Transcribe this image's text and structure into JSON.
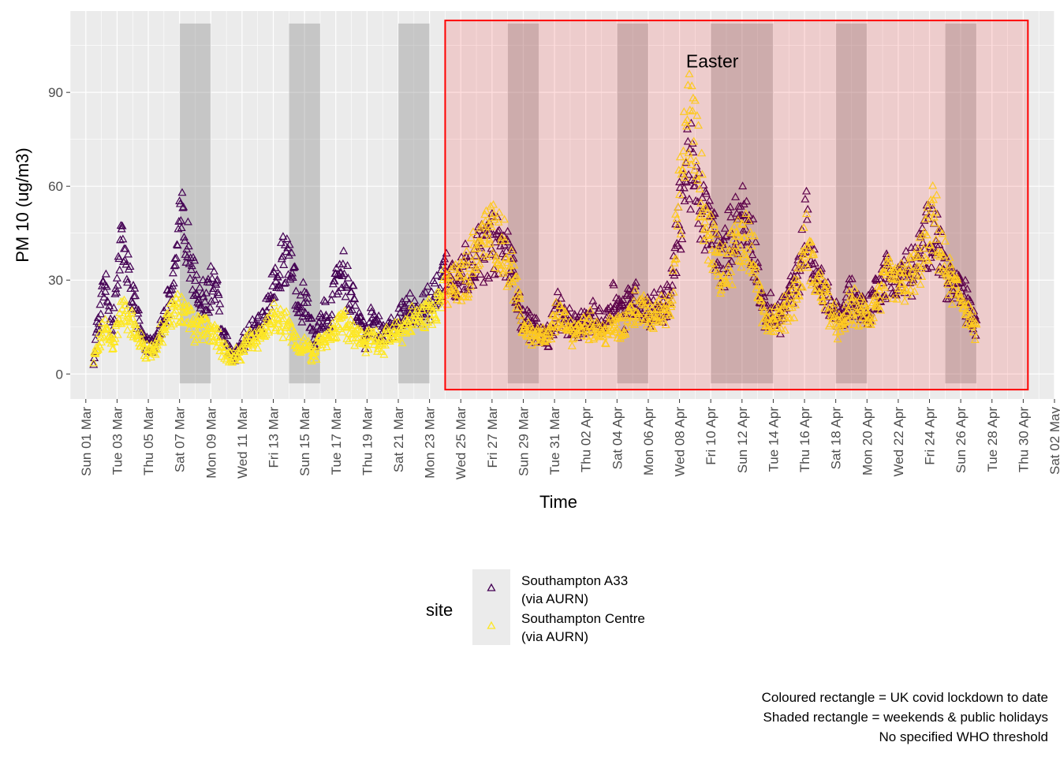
{
  "chart_data": {
    "type": "scatter",
    "xlabel": "Time",
    "ylabel": "PM 10 (ug/m3)",
    "ylim": [
      -8,
      116
    ],
    "xlim_days": [
      -1,
      62
    ],
    "y_ticks": [
      0,
      30,
      60,
      90
    ],
    "grid": true,
    "legend_placement": "bottom",
    "legend_title": "site",
    "x_ticks": [
      {
        "day": 0,
        "label": "Sun 01 Mar"
      },
      {
        "day": 2,
        "label": "Tue 03 Mar"
      },
      {
        "day": 4,
        "label": "Thu 05 Mar"
      },
      {
        "day": 6,
        "label": "Sat 07 Mar"
      },
      {
        "day": 8,
        "label": "Mon 09 Mar"
      },
      {
        "day": 10,
        "label": "Wed 11 Mar"
      },
      {
        "day": 12,
        "label": "Fri 13 Mar"
      },
      {
        "day": 14,
        "label": "Sun 15 Mar"
      },
      {
        "day": 16,
        "label": "Tue 17 Mar"
      },
      {
        "day": 18,
        "label": "Thu 19 Mar"
      },
      {
        "day": 20,
        "label": "Sat 21 Mar"
      },
      {
        "day": 22,
        "label": "Mon 23 Mar"
      },
      {
        "day": 24,
        "label": "Wed 25 Mar"
      },
      {
        "day": 26,
        "label": "Fri 27 Mar"
      },
      {
        "day": 28,
        "label": "Sun 29 Mar"
      },
      {
        "day": 30,
        "label": "Tue 31 Mar"
      },
      {
        "day": 32,
        "label": "Thu 02 Apr"
      },
      {
        "day": 34,
        "label": "Sat 04 Apr"
      },
      {
        "day": 36,
        "label": "Mon 06 Apr"
      },
      {
        "day": 38,
        "label": "Wed 08 Apr"
      },
      {
        "day": 40,
        "label": "Fri 10 Apr"
      },
      {
        "day": 42,
        "label": "Sun 12 Apr"
      },
      {
        "day": 44,
        "label": "Tue 14 Apr"
      },
      {
        "day": 46,
        "label": "Thu 16 Apr"
      },
      {
        "day": 48,
        "label": "Sat 18 Apr"
      },
      {
        "day": 50,
        "label": "Mon 20 Apr"
      },
      {
        "day": 52,
        "label": "Wed 22 Apr"
      },
      {
        "day": 54,
        "label": "Fri 24 Apr"
      },
      {
        "day": 56,
        "label": "Sun 26 Apr"
      },
      {
        "day": 58,
        "label": "Tue 28 Apr"
      },
      {
        "day": 60,
        "label": "Thu 30 Apr"
      },
      {
        "day": 62,
        "label": "Sat 02 May"
      }
    ],
    "shaded_periods": [
      {
        "start": 6,
        "end": 8,
        "y0": -3,
        "y1": 112
      },
      {
        "start": 13,
        "end": 15,
        "y0": -3,
        "y1": 112
      },
      {
        "start": 20,
        "end": 22,
        "y0": -3,
        "y1": 112
      },
      {
        "start": 27,
        "end": 29,
        "y0": -3,
        "y1": 112
      },
      {
        "start": 34,
        "end": 36,
        "y0": -3,
        "y1": 112
      },
      {
        "start": 40,
        "end": 44,
        "y0": -3,
        "y1": 112
      },
      {
        "start": 48,
        "end": 50,
        "y0": -3,
        "y1": 112
      },
      {
        "start": 55,
        "end": 57,
        "y0": -3,
        "y1": 112
      }
    ],
    "lockdown_period": {
      "start": 23,
      "end": 60.3,
      "y0": -5,
      "y1": 113
    },
    "annotations": [
      {
        "label": "Easter",
        "day": 40.1,
        "y": 100
      }
    ],
    "series": [
      {
        "name": "Southampton A33\n(via AURN)",
        "color": "#440154",
        "daily_profile": [
          [
            0.5,
            5
          ],
          [
            1.2,
            30
          ],
          [
            1.7,
            12
          ],
          [
            2.3,
            45
          ],
          [
            2.8,
            30
          ],
          [
            3.3,
            20
          ],
          [
            3.8,
            10
          ],
          [
            4.3,
            8
          ],
          [
            5.0,
            18
          ],
          [
            5.6,
            30
          ],
          [
            6.1,
            50
          ],
          [
            6.6,
            38
          ],
          [
            7.0,
            28
          ],
          [
            7.6,
            25
          ],
          [
            8.3,
            30
          ],
          [
            8.8,
            12
          ],
          [
            9.4,
            5
          ],
          [
            10.0,
            10
          ],
          [
            10.5,
            14
          ],
          [
            11.0,
            15
          ],
          [
            11.5,
            18
          ],
          [
            12.1,
            30
          ],
          [
            12.6,
            35
          ],
          [
            13.0,
            40
          ],
          [
            13.6,
            20
          ],
          [
            14.1,
            25
          ],
          [
            14.6,
            10
          ],
          [
            15.2,
            18
          ],
          [
            15.7,
            20
          ],
          [
            16.3,
            35
          ],
          [
            16.8,
            28
          ],
          [
            17.3,
            20
          ],
          [
            17.9,
            12
          ],
          [
            18.4,
            18
          ],
          [
            19.0,
            12
          ],
          [
            19.6,
            15
          ],
          [
            20.2,
            18
          ],
          [
            20.8,
            22
          ],
          [
            21.4,
            20
          ],
          [
            22.0,
            22
          ],
          [
            22.6,
            28
          ],
          [
            23.2,
            35
          ],
          [
            23.8,
            30
          ],
          [
            24.4,
            35
          ],
          [
            25.0,
            38
          ],
          [
            25.6,
            40
          ],
          [
            26.2,
            42
          ],
          [
            26.8,
            40
          ],
          [
            27.4,
            32
          ],
          [
            27.9,
            18
          ],
          [
            28.5,
            15
          ],
          [
            29.0,
            14
          ],
          [
            29.6,
            12
          ],
          [
            30.2,
            22
          ],
          [
            30.8,
            16
          ],
          [
            31.4,
            15
          ],
          [
            32.0,
            17
          ],
          [
            32.6,
            18
          ],
          [
            33.2,
            16
          ],
          [
            33.8,
            25
          ],
          [
            34.4,
            20
          ],
          [
            35.0,
            25
          ],
          [
            35.6,
            22
          ],
          [
            36.2,
            20
          ],
          [
            36.8,
            22
          ],
          [
            37.4,
            24
          ],
          [
            38.0,
            50
          ],
          [
            38.6,
            70
          ],
          [
            39.1,
            55
          ],
          [
            39.6,
            50
          ],
          [
            40.2,
            45
          ],
          [
            40.7,
            35
          ],
          [
            41.3,
            45
          ],
          [
            41.8,
            50
          ],
          [
            42.3,
            50
          ],
          [
            42.8,
            40
          ],
          [
            43.3,
            20
          ],
          [
            43.8,
            20
          ],
          [
            44.4,
            18
          ],
          [
            45.0,
            25
          ],
          [
            45.6,
            30
          ],
          [
            46.1,
            48
          ],
          [
            46.7,
            30
          ],
          [
            47.3,
            28
          ],
          [
            47.8,
            20
          ],
          [
            48.4,
            18
          ],
          [
            48.9,
            26
          ],
          [
            49.5,
            22
          ],
          [
            50.1,
            20
          ],
          [
            50.7,
            28
          ],
          [
            51.3,
            32
          ],
          [
            51.9,
            30
          ],
          [
            52.5,
            32
          ],
          [
            53.1,
            34
          ],
          [
            53.7,
            42
          ],
          [
            54.3,
            48
          ],
          [
            54.9,
            35
          ],
          [
            55.5,
            28
          ],
          [
            56.1,
            26
          ],
          [
            56.6,
            20
          ],
          [
            57.0,
            15
          ]
        ]
      },
      {
        "name": "Southampton Centre\n(via AURN)",
        "color": "#FDE725",
        "daily_profile": [
          [
            0.5,
            4
          ],
          [
            1.2,
            15
          ],
          [
            1.7,
            10
          ],
          [
            2.3,
            20
          ],
          [
            2.8,
            18
          ],
          [
            3.3,
            12
          ],
          [
            3.8,
            8
          ],
          [
            4.3,
            7
          ],
          [
            5.0,
            14
          ],
          [
            5.6,
            20
          ],
          [
            6.1,
            22
          ],
          [
            6.6,
            18
          ],
          [
            7.0,
            14
          ],
          [
            7.6,
            15
          ],
          [
            8.3,
            14
          ],
          [
            8.8,
            8
          ],
          [
            9.4,
            4
          ],
          [
            10.0,
            8
          ],
          [
            10.5,
            11
          ],
          [
            11.0,
            12
          ],
          [
            11.5,
            14
          ],
          [
            12.1,
            18
          ],
          [
            12.6,
            16
          ],
          [
            13.0,
            14
          ],
          [
            13.6,
            8
          ],
          [
            14.1,
            9
          ],
          [
            14.6,
            6
          ],
          [
            15.2,
            12
          ],
          [
            15.7,
            13
          ],
          [
            16.3,
            18
          ],
          [
            16.8,
            16
          ],
          [
            17.3,
            13
          ],
          [
            17.9,
            10
          ],
          [
            18.4,
            12
          ],
          [
            19.0,
            10
          ],
          [
            19.6,
            12
          ],
          [
            20.2,
            14
          ],
          [
            20.8,
            17
          ],
          [
            21.4,
            18
          ],
          [
            22.0,
            20
          ],
          [
            22.6,
            24
          ],
          [
            23.2,
            28
          ],
          [
            23.8,
            28
          ],
          [
            24.4,
            32
          ],
          [
            25.0,
            40
          ],
          [
            25.6,
            44
          ],
          [
            26.2,
            45
          ],
          [
            26.8,
            40
          ],
          [
            27.4,
            30
          ],
          [
            27.9,
            16
          ],
          [
            28.5,
            13
          ],
          [
            29.0,
            12
          ],
          [
            29.6,
            11
          ],
          [
            30.2,
            20
          ],
          [
            30.8,
            14
          ],
          [
            31.4,
            14
          ],
          [
            32.0,
            16
          ],
          [
            32.6,
            15
          ],
          [
            33.2,
            13
          ],
          [
            33.8,
            15
          ],
          [
            34.4,
            14
          ],
          [
            35.0,
            22
          ],
          [
            35.6,
            20
          ],
          [
            36.2,
            18
          ],
          [
            36.8,
            20
          ],
          [
            37.4,
            22
          ],
          [
            38.0,
            55
          ],
          [
            38.6,
            85
          ],
          [
            39.1,
            70
          ],
          [
            39.6,
            50
          ],
          [
            40.2,
            40
          ],
          [
            40.7,
            33
          ],
          [
            41.3,
            38
          ],
          [
            41.8,
            42
          ],
          [
            42.3,
            45
          ],
          [
            42.8,
            35
          ],
          [
            43.3,
            18
          ],
          [
            43.8,
            18
          ],
          [
            44.4,
            17
          ],
          [
            45.0,
            22
          ],
          [
            45.6,
            28
          ],
          [
            46.1,
            42
          ],
          [
            46.7,
            30
          ],
          [
            47.3,
            26
          ],
          [
            47.8,
            18
          ],
          [
            48.4,
            14
          ],
          [
            48.9,
            22
          ],
          [
            49.5,
            20
          ],
          [
            50.1,
            18
          ],
          [
            50.7,
            24
          ],
          [
            51.3,
            30
          ],
          [
            51.9,
            28
          ],
          [
            52.5,
            30
          ],
          [
            53.1,
            32
          ],
          [
            53.7,
            40
          ],
          [
            54.3,
            50
          ],
          [
            54.9,
            35
          ],
          [
            55.5,
            28
          ],
          [
            56.1,
            24
          ],
          [
            56.6,
            18
          ],
          [
            57.0,
            12
          ]
        ]
      }
    ]
  },
  "legend": {
    "title": "site",
    "items": [
      {
        "line1": "Southampton A33",
        "line2": "(via AURN)",
        "color": "#440154"
      },
      {
        "line1": "Southampton Centre",
        "line2": "(via AURN)",
        "color": "#FDE725"
      }
    ]
  },
  "caption": [
    "Coloured rectangle = UK covid lockdown to date",
    "Shaded rectangle = weekends & public holidays",
    "No specified WHO threshold"
  ]
}
